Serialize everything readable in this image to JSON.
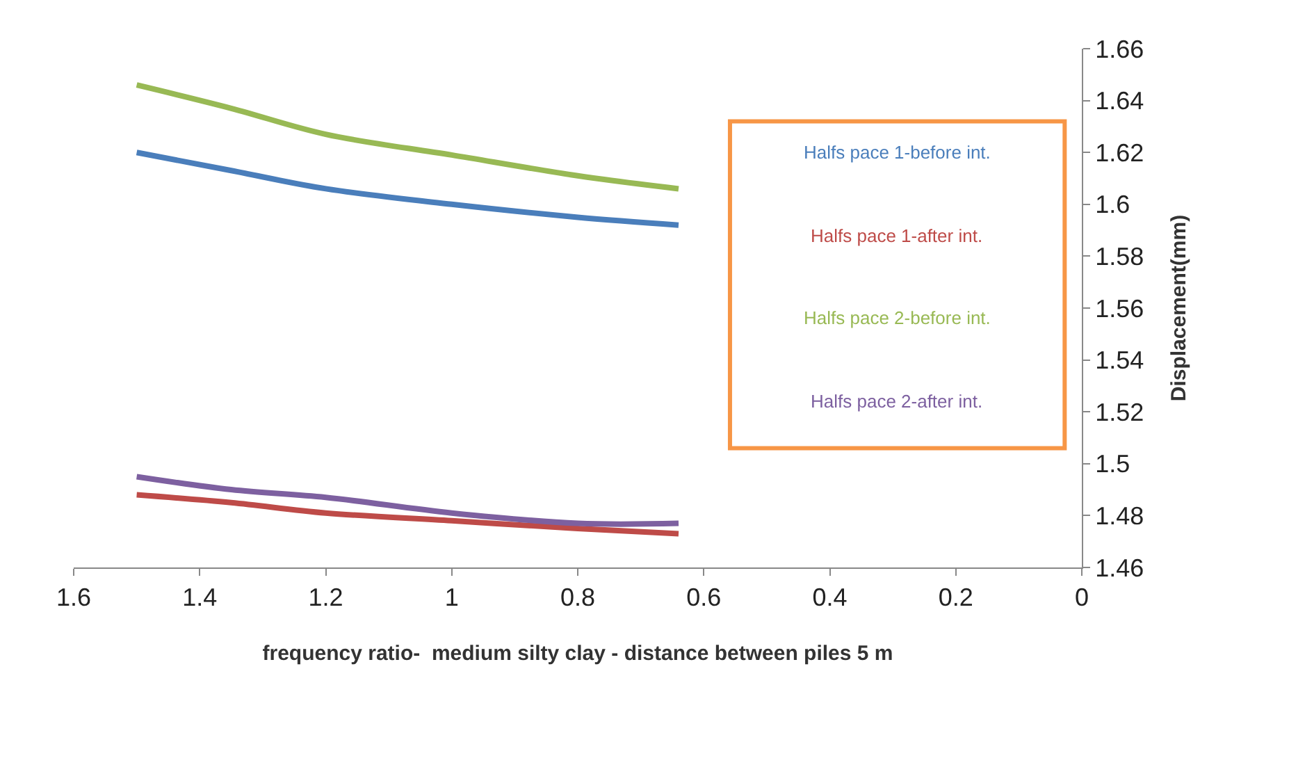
{
  "chart_data": {
    "type": "line",
    "xlabel": "frequency ratio-  medium silty clay - distance between piles 5 m",
    "ylabel": "Displacement(mm)",
    "x": [
      1.5,
      1.35,
      1.2,
      1.0,
      0.8,
      0.64
    ],
    "series": [
      {
        "name": "Halfs pace 1-before int.",
        "color": "#4a7ebb",
        "values": [
          1.62,
          1.613,
          1.606,
          1.6,
          1.595,
          1.592
        ]
      },
      {
        "name": "Halfs pace 1-after int.",
        "color": "#be4b48",
        "values": [
          1.488,
          1.485,
          1.481,
          1.478,
          1.475,
          1.473
        ]
      },
      {
        "name": "Halfs pace 2-before int.",
        "color": "#98b954",
        "values": [
          1.646,
          1.637,
          1.627,
          1.619,
          1.611,
          1.606
        ]
      },
      {
        "name": "Halfs pace 2-after int.",
        "color": "#7d60a0",
        "values": [
          1.495,
          1.49,
          1.487,
          1.481,
          1.477,
          1.477
        ]
      }
    ],
    "xlim": [
      1.6,
      0
    ],
    "xticks": [
      1.6,
      1.4,
      1.2,
      1,
      0.8,
      0.6,
      0.4,
      0.2,
      0
    ],
    "ylim": [
      1.46,
      1.66
    ],
    "yticks": [
      1.46,
      1.48,
      1.5,
      1.52,
      1.54,
      1.56,
      1.58,
      1.6,
      1.62,
      1.64,
      1.66
    ],
    "legend": "right",
    "marker": "none",
    "line_style": "solid"
  }
}
